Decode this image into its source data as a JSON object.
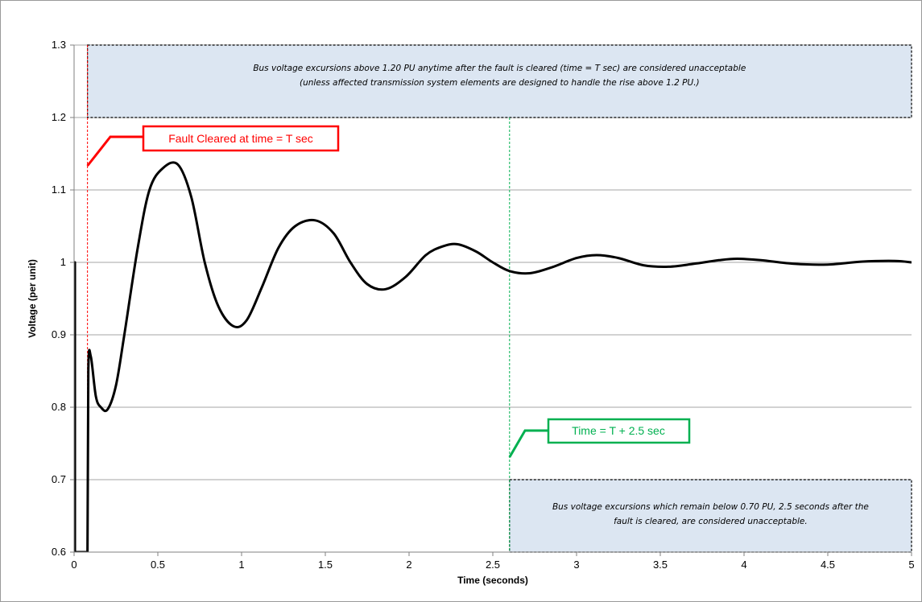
{
  "chart_data": {
    "type": "line",
    "xlabel": "Time (seconds)",
    "ylabel": "Voltage (per unit)",
    "xlim": [
      0,
      5
    ],
    "ylim": [
      0.6,
      1.3
    ],
    "xticks": [
      0,
      0.5,
      1,
      1.5,
      2,
      2.5,
      3,
      3.5,
      4,
      4.5,
      5
    ],
    "xtick_labels": [
      "0",
      "0.5",
      "1",
      "1.5",
      "2",
      "2.5",
      "3",
      "3.5",
      "4",
      "4.5",
      "5"
    ],
    "yticks": [
      0.6,
      0.7,
      0.8,
      0.9,
      1.0,
      1.1,
      1.2,
      1.3
    ],
    "ytick_labels": [
      "0.6",
      "0.7",
      "0.8",
      "0.9",
      "1",
      "1.1",
      "1.2",
      "1.3"
    ],
    "grid": "horizontal",
    "series": [
      {
        "color": "#000000",
        "x": [
          0,
          0,
          0.005,
          0.005,
          0.08,
          0.085,
          0.1,
          0.13,
          0.16,
          0.2,
          0.25,
          0.3,
          0.38,
          0.45,
          0.53,
          0.62,
          0.7,
          0.78,
          0.86,
          0.95,
          1.03,
          1.12,
          1.22,
          1.32,
          1.44,
          1.55,
          1.65,
          1.75,
          1.86,
          1.98,
          2.1,
          2.2,
          2.29,
          2.4,
          2.5,
          2.6,
          2.72,
          2.85,
          3.0,
          3.12,
          3.25,
          3.4,
          3.55,
          3.7,
          3.85,
          3.96,
          4.1,
          4.3,
          4.5,
          4.7,
          4.9,
          5.0
        ],
        "y": [
          0.6,
          1.0,
          1.0,
          0.6,
          0.6,
          0.85,
          0.87,
          0.815,
          0.8,
          0.797,
          0.83,
          0.9,
          1.02,
          1.1,
          1.13,
          1.135,
          1.09,
          1.0,
          0.94,
          0.912,
          0.92,
          0.965,
          1.02,
          1.05,
          1.058,
          1.04,
          1.0,
          0.97,
          0.963,
          0.98,
          1.01,
          1.022,
          1.025,
          1.015,
          1.0,
          0.988,
          0.985,
          0.993,
          1.006,
          1.01,
          1.006,
          0.996,
          0.994,
          0.998,
          1.003,
          1.005,
          1.003,
          0.998,
          0.997,
          1.001,
          1.002,
          1.0
        ]
      }
    ],
    "fault_cleared_time": 0.08,
    "evaluation_time": 2.6,
    "zones": [
      {
        "x": [
          0.08,
          5.0
        ],
        "y": [
          1.2,
          1.3
        ],
        "fill": "#dce6f2",
        "lines": [
          "Bus voltage excursions above 1.20 PU anytime after the fault is cleared (time = T sec) are considered unacceptable",
          "(unless affected transmission system elements are designed to handle the rise above 1.2 PU.)"
        ]
      },
      {
        "x": [
          2.6,
          5.0
        ],
        "y": [
          0.6,
          0.7
        ],
        "fill": "#dce6f2",
        "lines": [
          "Bus voltage excursions which remain below 0.70 PU, 2.5 seconds after the",
          "fault is cleared, are considered unacceptable."
        ]
      }
    ],
    "annotations": [
      {
        "text": "Fault Cleared at time = T sec",
        "color": "#ff0000"
      },
      {
        "text": "Time = T + 2.5 sec",
        "color": "#00b050"
      }
    ]
  }
}
